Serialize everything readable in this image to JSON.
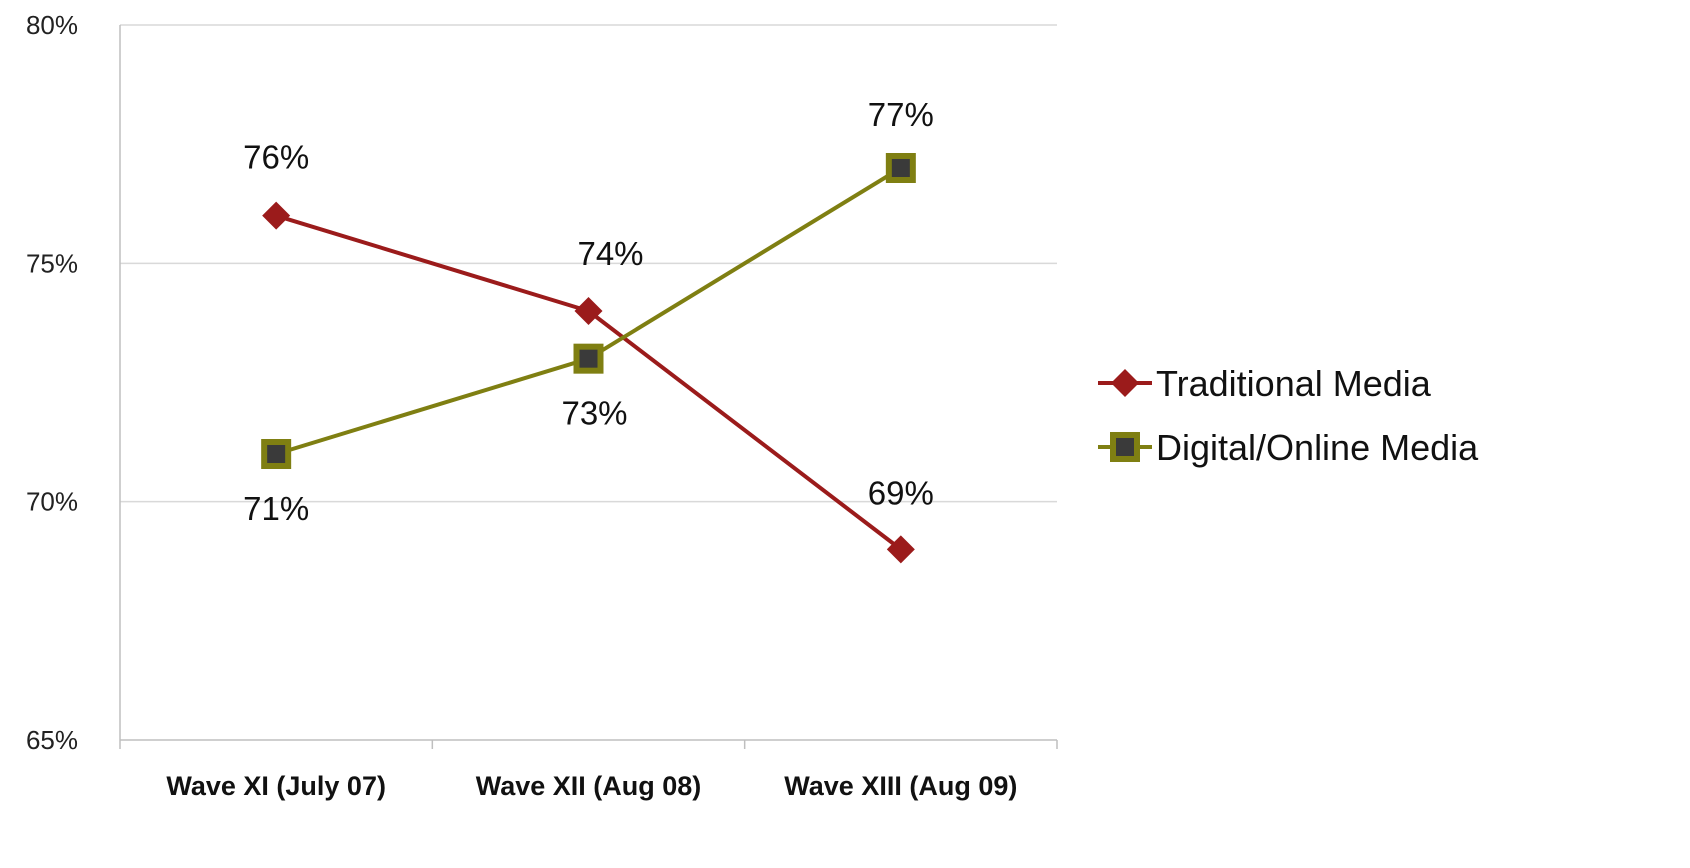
{
  "chart_data": {
    "type": "line",
    "categories": [
      "Wave XI (July 07)",
      "Wave XII (Aug 08)",
      "Wave XIII (Aug 09)"
    ],
    "series": [
      {
        "name": "Traditional Media",
        "values": [
          76,
          74,
          69
        ],
        "labels": [
          "76%",
          "74%",
          "69%"
        ],
        "color": "#9b1b1b",
        "marker": "diamond"
      },
      {
        "name": "Digital/Online Media",
        "values": [
          71,
          73,
          77
        ],
        "labels": [
          "71%",
          "73%",
          "77%"
        ],
        "color": "#7f7f12",
        "marker": "square"
      }
    ],
    "yticks": [
      65,
      70,
      75,
      80
    ],
    "ytick_labels": [
      "65%",
      "70%",
      "75%",
      "80%"
    ],
    "ylim": [
      65,
      80
    ],
    "grid": true,
    "legend_position": "right",
    "gridline_color": "#d9d9d9",
    "axis_color": "#bfbfbf"
  }
}
